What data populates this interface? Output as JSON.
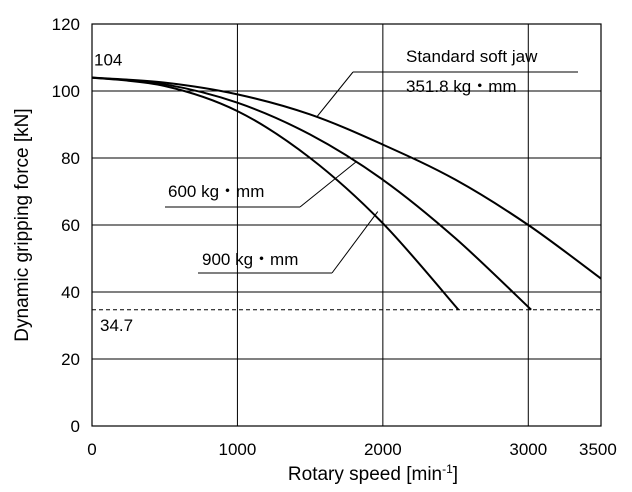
{
  "chart_data": {
    "type": "line",
    "xlabel_main": "Rotary speed [min",
    "xlabel_sup": "-1",
    "xlabel_close": "]",
    "ylabel": "Dynamic gripping force [kN]",
    "xlim": [
      0,
      3500
    ],
    "ylim": [
      0,
      120
    ],
    "x_ticks": [
      0,
      1000,
      2000,
      3000,
      3500
    ],
    "x_tick_labels": [
      "0",
      "1000",
      "2000",
      "3000",
      "3500"
    ],
    "y_ticks": [
      0,
      20,
      40,
      60,
      80,
      100,
      120
    ],
    "y_tick_labels": [
      "0",
      "20",
      "40",
      "60",
      "80",
      "100",
      "120"
    ],
    "grid": true,
    "series": [
      {
        "name": "Standard soft jaw",
        "name_line2": "351.8 kg・mm",
        "x": [
          0,
          500,
          1000,
          1500,
          2000,
          2500,
          3000,
          3500
        ],
        "y": [
          104,
          102.5,
          99,
          93,
          84,
          73.5,
          60,
          44
        ]
      },
      {
        "name": "600 kg・mm",
        "x": [
          0,
          500,
          1000,
          1500,
          2000,
          2500,
          3020
        ],
        "y": [
          104,
          102,
          96.5,
          87,
          73.5,
          56,
          34.7
        ]
      },
      {
        "name": "900 kg・mm",
        "x": [
          0,
          500,
          1000,
          1500,
          2000,
          2520
        ],
        "y": [
          104,
          101.5,
          94,
          80,
          60.5,
          34.7
        ]
      }
    ],
    "reference_line": {
      "y": 34.7,
      "label": "34.7",
      "style": "dashed"
    },
    "annotations": [
      {
        "text": "104"
      }
    ]
  }
}
